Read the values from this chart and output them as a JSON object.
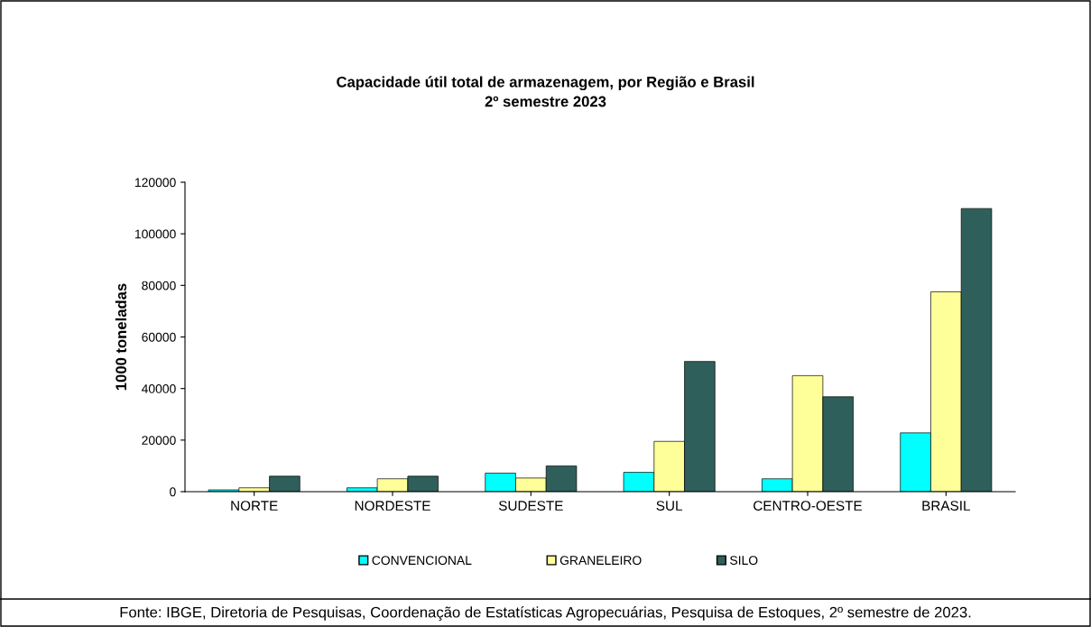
{
  "chart_data": {
    "type": "bar",
    "title": "Capacidade útil total de armazenagem, por Região e Brasil\n2º semestre 2023",
    "ylabel": "1000 toneladas",
    "categories": [
      "NORTE",
      "NORDESTE",
      "SUDESTE",
      "SUL",
      "CENTRO-OESTE",
      "BRASIL"
    ],
    "series": [
      {
        "name": "CONVENCIONAL",
        "color": "#00ffff",
        "values": [
          700,
          1500,
          7200,
          7500,
          5000,
          22800
        ]
      },
      {
        "name": "GRANELEIRO",
        "color": "#ffff99",
        "values": [
          1500,
          5000,
          5300,
          19500,
          45000,
          77500
        ]
      },
      {
        "name": "SILO",
        "color": "#2f5f5a",
        "values": [
          6000,
          6000,
          10000,
          50500,
          36800,
          109800
        ]
      }
    ],
    "ylim": [
      0,
      120000
    ],
    "yticks": [
      0,
      20000,
      40000,
      60000,
      80000,
      100000,
      120000
    ],
    "grid": false,
    "legend": "bottom",
    "annotations": [
      "Fonte: IBGE, Diretoria de Pesquisas, Coordenação de Estatísticas Agropecuárias, Pesquisa de Estoques, 2º semestre de 2023."
    ]
  }
}
